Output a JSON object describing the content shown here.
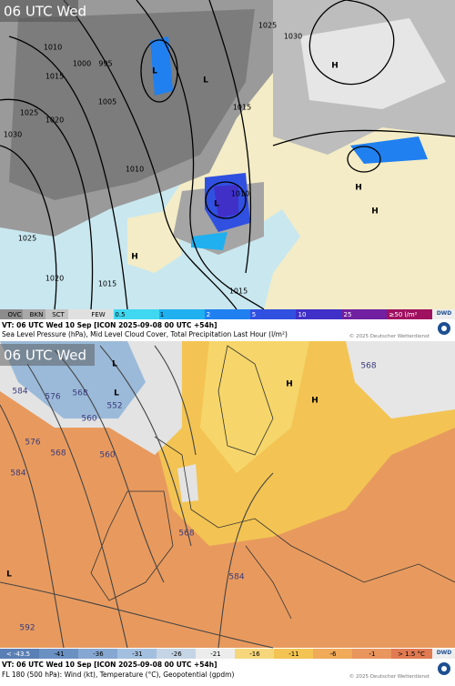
{
  "top_panel": {
    "time_label": "06 UTC Wed",
    "isobar_labels": [
      "1010",
      "1015",
      "1025",
      "1020",
      "1030",
      "1005",
      "1000",
      "995",
      "1010",
      "1025",
      "1020",
      "1015",
      "1015",
      "1015",
      "1010",
      "1025",
      "1030"
    ],
    "pressure_centers": [
      "L",
      "L",
      "H",
      "L",
      "H",
      "H",
      "H"
    ],
    "legend": [
      "OVC",
      "BKN",
      "SCT",
      "FEW",
      "0.5",
      "1",
      "2",
      "5",
      "10",
      "25",
      "≥50 l/m²"
    ],
    "valid_time": "VT: 06 UTC Wed  10 Sep [ICON 2025-09-08 00 UTC +54h]",
    "description": "Sea Level Pressure (hPa), Mid Level Cloud Cover, Total Precipitation Last Hour (l/m²)",
    "copyright": "© 2025 Deutscher Wetterdienst",
    "logo": "DWD"
  },
  "bottom_panel": {
    "time_label": "06 UTC Wed",
    "contour_labels": [
      "584",
      "576",
      "568",
      "560",
      "552",
      "560",
      "568",
      "576",
      "584",
      "592",
      "568",
      "584",
      "568"
    ],
    "pressure_centers": [
      "L",
      "L",
      "H",
      "H",
      "L"
    ],
    "legend": [
      "< -43.5",
      "-41",
      "-36",
      "-31",
      "-26",
      "-21",
      "-16",
      "-11",
      "-6",
      "-1",
      "> 1.5 °C"
    ],
    "valid_time": "VT: 06 UTC Wed  10 Sep [ICON 2025-09-08 00 UTC +54h]",
    "description": "FL 180 (500 hPa): Wind (kt), Temperature (°C), Geopotential (gpdm)",
    "copyright": "© 2025 Deutscher Wetterdienst",
    "logo": "DWD"
  }
}
